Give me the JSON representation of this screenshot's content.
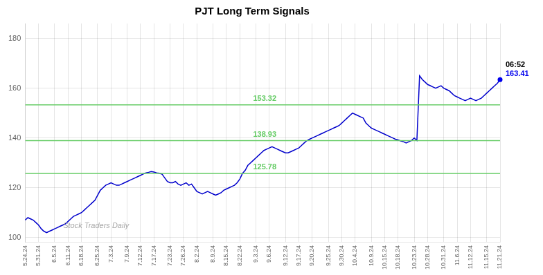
{
  "chart_data": {
    "type": "line",
    "title": "PJT Long Term Signals",
    "categories": [
      "5.24.24",
      null,
      null,
      null,
      null,
      "5.31.24",
      null,
      null,
      null,
      null,
      null,
      "6.5.24",
      null,
      null,
      null,
      null,
      "6.11.24",
      null,
      null,
      null,
      null,
      "6.18.24",
      null,
      null,
      null,
      null,
      null,
      "6.25.24",
      null,
      null,
      null,
      null,
      "7.3.24",
      null,
      null,
      null,
      null,
      null,
      "7.9.24",
      null,
      null,
      null,
      null,
      "7.12.24",
      null,
      null,
      null,
      null,
      "7.17.24",
      null,
      null,
      null,
      null,
      null,
      "7.23.24",
      null,
      null,
      null,
      null,
      "7.26.24",
      null,
      null,
      null,
      null,
      "8.2.24",
      null,
      null,
      null,
      null,
      null,
      "8.9.24",
      null,
      null,
      null,
      null,
      "8.15.24",
      null,
      null,
      null,
      null,
      "8.22.24",
      null,
      null,
      null,
      null,
      null,
      "9.3.24",
      null,
      null,
      null,
      null,
      "9.6.24",
      null,
      null,
      null,
      null,
      null,
      "9.12.24",
      null,
      null,
      null,
      null,
      "9.17.24",
      null,
      null,
      null,
      null,
      "9.20.24",
      null,
      null,
      null,
      null,
      null,
      "9.25.24",
      null,
      null,
      null,
      null,
      "9.30.24",
      null,
      null,
      null,
      null,
      "10.4.24",
      null,
      null,
      null,
      null,
      null,
      "10.9.24",
      null,
      null,
      null,
      null,
      "10.15.24",
      null,
      null,
      null,
      null,
      "10.18.24",
      null,
      null,
      null,
      null,
      null,
      "10.23.24",
      null,
      null,
      null,
      null,
      "10.28.24",
      null,
      null,
      null,
      null,
      null,
      "10.31.24",
      null,
      null,
      null,
      null,
      "11.6.24",
      null,
      null,
      null,
      null,
      "11.12.24",
      null,
      null,
      null,
      null,
      null,
      "11.15.24",
      null,
      null,
      null,
      null,
      "11.21.24"
    ],
    "values": [
      107.0,
      108.0,
      107.5,
      107.0,
      106.0,
      105.0,
      103.5,
      102.5,
      102.0,
      102.5,
      103.0,
      103.5,
      104.0,
      104.5,
      105.0,
      105.5,
      106.5,
      107.5,
      108.5,
      109.0,
      109.5,
      110.0,
      111.0,
      112.0,
      113.0,
      114.0,
      115.0,
      117.0,
      119.0,
      120.0,
      121.0,
      121.5,
      122.0,
      121.5,
      121.0,
      121.0,
      121.5,
      122.0,
      122.5,
      123.0,
      123.5,
      124.0,
      124.5,
      125.0,
      125.5,
      126.0,
      126.2,
      126.5,
      126.3,
      126.0,
      125.8,
      125.5,
      124.0,
      122.5,
      122.0,
      122.0,
      122.5,
      121.5,
      121.0,
      121.5,
      122.0,
      121.0,
      121.5,
      120.0,
      118.5,
      118.0,
      117.5,
      118.0,
      118.5,
      118.0,
      117.5,
      117.0,
      117.5,
      118.0,
      119.0,
      119.5,
      120.0,
      120.5,
      121.0,
      122.0,
      123.5,
      125.78,
      127.0,
      129.0,
      130.0,
      131.0,
      132.0,
      133.0,
      134.0,
      135.0,
      135.5,
      136.0,
      136.5,
      136.0,
      135.5,
      135.0,
      134.5,
      134.0,
      134.0,
      134.5,
      135.0,
      135.5,
      136.0,
      137.0,
      138.0,
      138.93,
      139.5,
      140.0,
      140.5,
      141.0,
      141.5,
      142.0,
      142.5,
      143.0,
      143.5,
      144.0,
      144.5,
      145.0,
      146.0,
      147.0,
      148.0,
      149.0,
      150.0,
      149.5,
      149.0,
      148.5,
      148.0,
      146.0,
      145.0,
      144.0,
      143.5,
      143.0,
      142.5,
      142.0,
      141.5,
      141.0,
      140.5,
      140.0,
      139.5,
      139.2,
      138.8,
      138.5,
      138.0,
      138.5,
      139.0,
      140.0,
      139.0,
      165.0,
      163.5,
      162.5,
      161.5,
      161.0,
      160.5,
      160.0,
      160.5,
      161.0,
      160.0,
      159.5,
      159.0,
      158.0,
      157.0,
      156.5,
      156.0,
      155.5,
      155.0,
      155.5,
      156.0,
      155.5,
      155.0,
      155.5,
      156.0,
      157.0,
      158.0,
      159.0,
      160.0,
      161.0,
      162.0,
      163.41
    ],
    "color": "#0000cc",
    "ylim": [
      98,
      186
    ],
    "yticks": [
      100,
      120,
      140,
      160,
      180
    ],
    "grid": true,
    "hlines": {
      "values": [
        125.78,
        138.93,
        153.32
      ],
      "labels": [
        "125.78",
        "138.93",
        "153.32"
      ],
      "color": "#66cc66"
    },
    "last_point": {
      "value": 163.41,
      "label": "06:52",
      "color": "#0000ee"
    },
    "watermark": "Stock Traders Daily"
  }
}
